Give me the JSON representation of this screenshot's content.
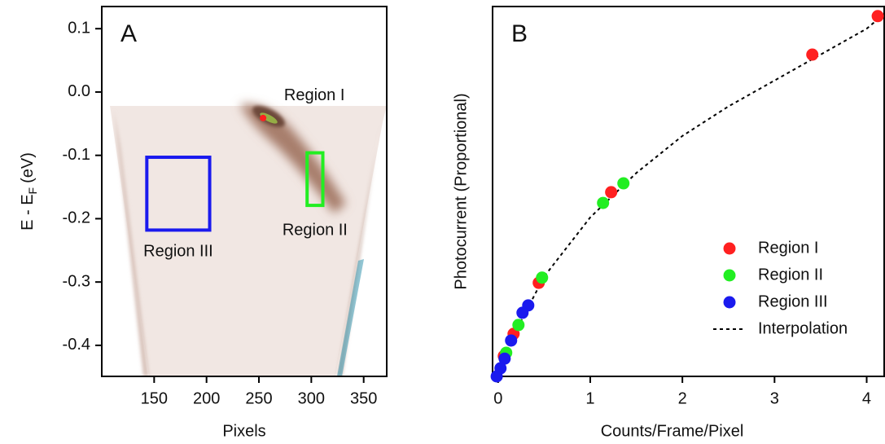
{
  "chart_data": [
    {
      "type": "image",
      "panel_label": "A",
      "xlabel": "Pixels",
      "ylabel": {
        "text": "E - E",
        "subscript": "F",
        "unit": "(eV)"
      },
      "xlim": [
        100,
        372
      ],
      "xticks": [
        150,
        200,
        250,
        300,
        350
      ],
      "ylim": [
        -0.449,
        0.135
      ],
      "yticks": [
        0.1,
        {
          "value": 0,
          "label": "0.0"
        },
        -0.1,
        -0.2,
        -0.3,
        -0.4
      ],
      "regions": [
        {
          "label": "Region I",
          "x": 254,
          "y": -0.041,
          "color": "#ff2020"
        },
        {
          "label": "Region II",
          "x": [
            296,
            311
          ],
          "y": [
            -0.179,
            -0.096
          ],
          "color": "#22ee22"
        },
        {
          "label": "Region III",
          "x": [
            143,
            203
          ],
          "y": [
            -0.218,
            -0.103
          ],
          "color": "#1a1aee"
        }
      ]
    },
    {
      "type": "scatter",
      "panel_label": "B",
      "xlabel": "Counts/Frame/Pixel",
      "ylabel": "Photocurrent (Proportional)",
      "xlim": [
        -0.06,
        4.19
      ],
      "xticks": [
        0,
        1,
        2,
        3,
        4
      ],
      "ylim": [
        0,
        1
      ],
      "legend": "lower right",
      "series": [
        {
          "name": "Region I",
          "color": "#ff2020",
          "x": [
            4.12,
            3.41,
            1.227,
            0.441,
            0.168,
            0.062
          ],
          "values": [
            0.974,
            0.87,
            0.498,
            0.253,
            0.115,
            0.055
          ]
        },
        {
          "name": "Region II",
          "color": "#22ee22",
          "x": [
            1.36,
            1.139,
            0.477,
            0.221,
            0.088
          ],
          "values": [
            0.522,
            0.469,
            0.267,
            0.139,
            0.064
          ]
        },
        {
          "name": "Region III",
          "color": "#1a1aee",
          "x": [
            0.327,
            0.265,
            0.141,
            0.071,
            0.026,
            -0.015
          ],
          "values": [
            0.192,
            0.172,
            0.097,
            0.048,
            0.022,
            0
          ]
        },
        {
          "name": "Interpolation",
          "color": "#000000",
          "line_style": "dashed",
          "x": [
            0,
            0.1,
            0.25,
            0.5,
            1,
            1.5,
            2,
            2.5,
            3,
            3.5,
            4,
            4.19
          ],
          "values": [
            0,
            0.07,
            0.15,
            0.27,
            0.43,
            0.55,
            0.65,
            0.73,
            0.8,
            0.87,
            0.94,
            0.98
          ]
        }
      ]
    }
  ]
}
